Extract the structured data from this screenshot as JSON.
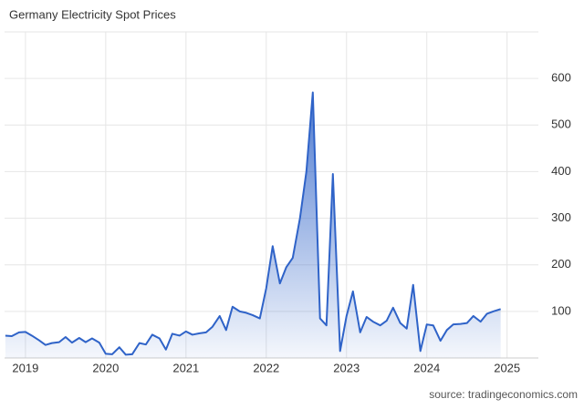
{
  "chart_data": {
    "type": "line",
    "title": "Germany Electricity Spot Prices",
    "source": "source: tradingeconomics.com",
    "x": [
      2018.75,
      2018.83,
      2018.92,
      2019.0,
      2019.08,
      2019.17,
      2019.25,
      2019.33,
      2019.42,
      2019.5,
      2019.58,
      2019.67,
      2019.75,
      2019.83,
      2019.92,
      2020.0,
      2020.08,
      2020.17,
      2020.25,
      2020.33,
      2020.42,
      2020.5,
      2020.58,
      2020.67,
      2020.75,
      2020.83,
      2020.92,
      2021.0,
      2021.08,
      2021.17,
      2021.25,
      2021.33,
      2021.42,
      2021.5,
      2021.58,
      2021.67,
      2021.75,
      2021.83,
      2021.92,
      2022.0,
      2022.08,
      2022.17,
      2022.25,
      2022.33,
      2022.42,
      2022.5,
      2022.58,
      2022.67,
      2022.75,
      2022.83,
      2022.92,
      2023.0,
      2023.08,
      2023.17,
      2023.25,
      2023.33,
      2023.42,
      2023.5,
      2023.58,
      2023.67,
      2023.75,
      2023.83,
      2023.92,
      2024.0,
      2024.08,
      2024.17,
      2024.25,
      2024.33,
      2024.42,
      2024.5,
      2024.58,
      2024.67,
      2024.75,
      2024.83,
      2024.92
    ],
    "series": [
      {
        "color": "#2f63c8",
        "values": [
          48,
          47,
          55,
          56,
          48,
          38,
          28,
          32,
          34,
          45,
          33,
          43,
          34,
          42,
          33,
          9,
          8,
          23,
          7,
          8,
          32,
          29,
          50,
          42,
          18,
          52,
          48,
          57,
          50,
          53,
          55,
          67,
          90,
          60,
          110,
          100,
          97,
          92,
          85,
          150,
          240,
          160,
          195,
          215,
          300,
          400,
          570,
          85,
          70,
          395,
          15,
          90,
          143,
          55,
          88,
          78,
          70,
          80,
          108,
          75,
          63,
          157,
          15,
          72,
          70,
          37,
          60,
          72,
          73,
          75,
          90,
          78,
          95,
          100,
          105
        ]
      }
    ],
    "xlim": [
      2018.74,
      2025.39
    ],
    "xticks": [
      2019,
      2020,
      2021,
      2022,
      2023,
      2024,
      2025
    ],
    "ylim": [
      0,
      700
    ],
    "yticks": [
      100,
      200,
      300,
      400,
      500,
      600
    ],
    "grid": true
  }
}
